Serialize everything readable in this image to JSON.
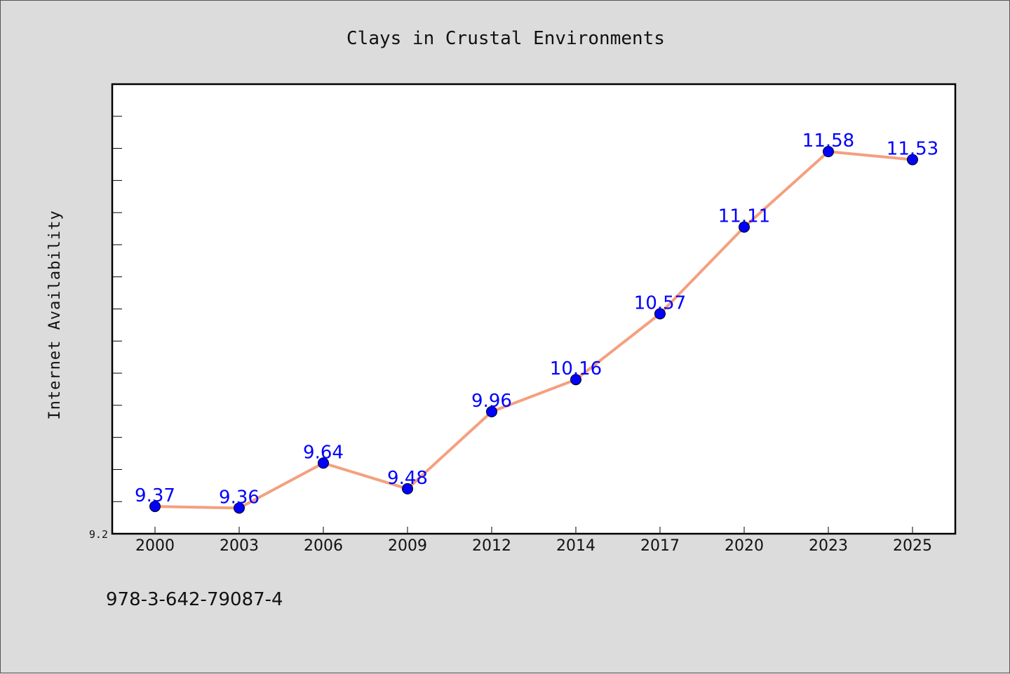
{
  "chart_data": {
    "type": "line",
    "title": "Clays in Crustal Environments",
    "xlabel": "",
    "ylabel": "Internet Availability",
    "categories": [
      "2000",
      "2003",
      "2006",
      "2009",
      "2012",
      "2014",
      "2017",
      "2020",
      "2023",
      "2025"
    ],
    "series": [
      {
        "values": [
          9.37,
          9.36,
          9.64,
          9.48,
          9.96,
          10.16,
          10.57,
          11.11,
          11.58,
          11.53
        ],
        "data_labels": [
          "9.37",
          "9.36",
          "9.64",
          "9.48",
          "9.96",
          "10.16",
          "10.57",
          "11.11",
          "11.58",
          "11.53"
        ]
      }
    ],
    "ylim": [
      9.2,
      12.0
    ],
    "ytick_labels": [
      "9.2"
    ],
    "minor_tick_step": 0.2,
    "grid": false,
    "legend": "none"
  },
  "footer": {
    "isbn": "978-3-642-79087-4"
  },
  "colors": {
    "line": "#f4a07e",
    "marker": "#0000ff",
    "data_label": "#0000ff",
    "plot_background": "#ffffff",
    "figure_background": "#dcdcdc"
  }
}
